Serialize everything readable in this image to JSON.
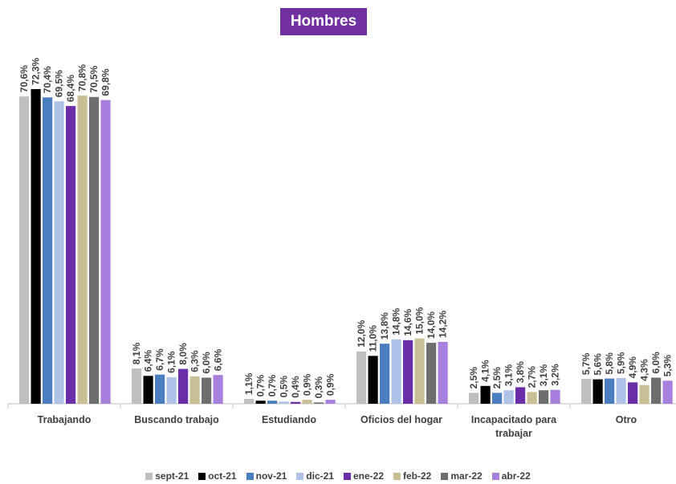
{
  "chart_data": {
    "type": "bar",
    "title": "Hombres",
    "categories": [
      "Trabajando",
      "Buscando trabajo",
      "Estudiando",
      "Oficios del hogar",
      "Incapacitado para trabajar",
      "Otro"
    ],
    "series": [
      {
        "name": "sept-21",
        "color": "#bfbfbf",
        "values": [
          70.6,
          8.1,
          1.1,
          12.0,
          2.5,
          5.7
        ],
        "labels": [
          "70,6%",
          "8,1%",
          "1,1%",
          "12,0%",
          "2,5%",
          "5,7%"
        ]
      },
      {
        "name": "oct-21",
        "color": "#000000",
        "values": [
          72.3,
          6.4,
          0.7,
          11.0,
          4.1,
          5.6
        ],
        "labels": [
          "72,3%",
          "6,4%",
          "0,7%",
          "11,0%",
          "4,1%",
          "5,6%"
        ]
      },
      {
        "name": "nov-21",
        "color": "#4a7ebf",
        "values": [
          70.4,
          6.7,
          0.7,
          13.8,
          2.5,
          5.8
        ],
        "labels": [
          "70,4%",
          "6,7%",
          "0,7%",
          "13,8%",
          "2,5%",
          "5,8%"
        ]
      },
      {
        "name": "dic-21",
        "color": "#aec2e8",
        "values": [
          69.5,
          6.1,
          0.5,
          14.8,
          3.1,
          5.9
        ],
        "labels": [
          "69,5%",
          "6,1%",
          "0,5%",
          "14,8%",
          "3,1%",
          "5,9%"
        ]
      },
      {
        "name": "ene-22",
        "color": "#6a2ea8",
        "values": [
          68.4,
          8.0,
          0.4,
          14.6,
          3.8,
          4.9
        ],
        "labels": [
          "68,4%",
          "8,0%",
          "0,4%",
          "14,6%",
          "3,8%",
          "4,9%"
        ]
      },
      {
        "name": "feb-22",
        "color": "#c9bf95",
        "values": [
          70.8,
          6.3,
          0.9,
          15.0,
          2.7,
          4.3
        ],
        "labels": [
          "70,8%",
          "6,3%",
          "0,9%",
          "15,0%",
          "2,7%",
          "4,3%"
        ]
      },
      {
        "name": "mar-22",
        "color": "#6e6e6e",
        "values": [
          70.5,
          6.0,
          0.3,
          14.0,
          3.1,
          6.0
        ],
        "labels": [
          "70,5%",
          "6,0%",
          "0,3%",
          "14,0%",
          "3,1%",
          "6,0%"
        ]
      },
      {
        "name": "abr-22",
        "color": "#a87fdc",
        "values": [
          69.8,
          6.6,
          0.9,
          14.2,
          3.2,
          5.3
        ],
        "labels": [
          "69,8%",
          "6,6%",
          "0,9%",
          "14,2%",
          "3,2%",
          "5,3%"
        ]
      }
    ],
    "ylim": [
      0,
      75
    ],
    "grid": false,
    "legend_position": "bottom"
  }
}
